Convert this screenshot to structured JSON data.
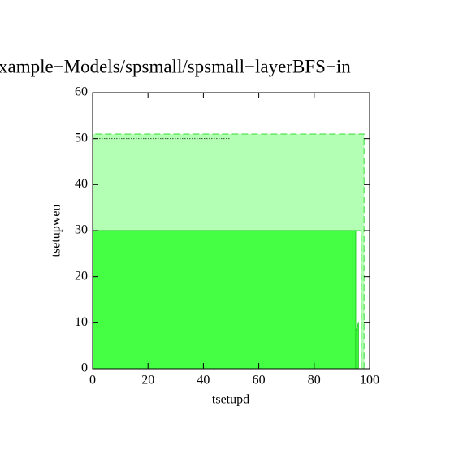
{
  "chart_data": {
    "type": "polygon",
    "title": "xample−Models/spsmall/spsmall−layerBFS−in",
    "x_label": "tsetupd",
    "y_label": "tsetupwen",
    "xlim": [
      0,
      100
    ],
    "ylim": [
      0,
      60
    ],
    "xticks": [
      0,
      20,
      40,
      60,
      80,
      100
    ],
    "yticks": [
      0,
      10,
      20,
      30,
      40,
      50,
      60
    ],
    "regions": [
      {
        "x": [
          0,
          97,
          97,
          98,
          98,
          0
        ],
        "y": [
          30,
          30,
          0,
          0,
          51,
          51
        ],
        "color": "#b3ffb3",
        "edge": "#33dd33",
        "style": "dashed"
      },
      {
        "x": [
          0,
          95,
          95,
          0
        ],
        "y": [
          0,
          0,
          30,
          30
        ],
        "color": "#44ff44",
        "edge": "#22cc22",
        "style": "solid"
      },
      {
        "x": [
          95,
          95,
          96,
          96
        ],
        "y": [
          0,
          8,
          10,
          0
        ],
        "color": "#44ff44",
        "edge": "#22cc22",
        "style": "solid"
      },
      {
        "x": [
          0,
          50,
          50,
          0
        ],
        "y": [
          0,
          0,
          50,
          50
        ],
        "color": "none",
        "edge": "#000000",
        "style": "dotted"
      }
    ]
  }
}
